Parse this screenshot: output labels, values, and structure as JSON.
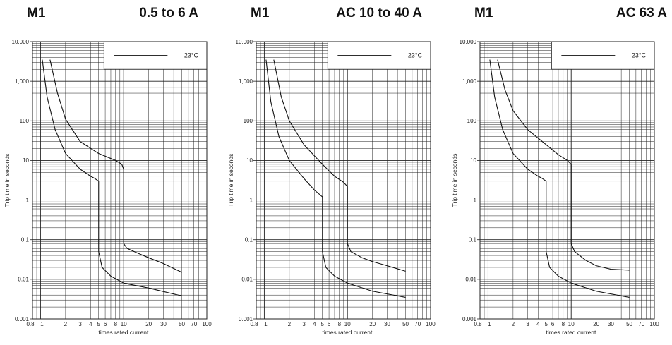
{
  "chart_data": [
    {
      "type": "line",
      "device": "M1",
      "title": "0.5 to 6 A",
      "xlabel": "… times rated current",
      "ylabel": "Trip time in seconds",
      "x_scale": "log",
      "y_scale": "log",
      "xlim": [
        0.8,
        100
      ],
      "ylim": [
        0.001,
        10000
      ],
      "grid": true,
      "x_ticks": [
        "0.8",
        "1",
        "2",
        "3",
        "4",
        "5",
        "6",
        "8",
        "10",
        "20",
        "30",
        "50",
        "70",
        "100"
      ],
      "y_ticks": [
        "0.001",
        "0.01",
        "0.1",
        "1",
        "10",
        "100",
        "1,000",
        "10,000"
      ],
      "legend": {
        "label": "23°C",
        "position": "top-right"
      },
      "series": [
        {
          "x": [
            1.05,
            1.2,
            1.5,
            2,
            3,
            4,
            4.5,
            5,
            5,
            5.5,
            7,
            10,
            20,
            50
          ],
          "y": [
            3500,
            400,
            60,
            15,
            6,
            4,
            3.5,
            3,
            0.05,
            0.02,
            0.012,
            0.008,
            0.006,
            0.0038
          ]
        },
        {
          "x": [
            1.3,
            1.6,
            2,
            3,
            5,
            8,
            9.5,
            10,
            10,
            11,
            15,
            20,
            30,
            50
          ],
          "y": [
            3500,
            500,
            110,
            30,
            15,
            10,
            8,
            6,
            0.08,
            0.06,
            0.045,
            0.035,
            0.025,
            0.015
          ]
        }
      ]
    },
    {
      "type": "line",
      "device": "M1",
      "title": "AC 10 to 40 A",
      "xlabel": "… times rated current",
      "ylabel": "Trip time in seconds",
      "x_scale": "log",
      "y_scale": "log",
      "xlim": [
        0.8,
        100
      ],
      "ylim": [
        0.001,
        10000
      ],
      "grid": true,
      "x_ticks": [
        "0.8",
        "1",
        "2",
        "3",
        "4",
        "5",
        "6",
        "8",
        "10",
        "20",
        "30",
        "50",
        "70",
        "100"
      ],
      "y_ticks": [
        "0.001",
        "0.01",
        "0.1",
        "1",
        "10",
        "100",
        "1,000",
        "10,000"
      ],
      "legend": {
        "label": "23°C",
        "position": "top-right"
      },
      "series": [
        {
          "x": [
            1.05,
            1.2,
            1.5,
            2,
            3,
            4,
            4.6,
            5,
            5,
            5.5,
            7,
            10,
            20,
            50
          ],
          "y": [
            3500,
            300,
            40,
            10,
            3.5,
            1.8,
            1.4,
            1.2,
            0.05,
            0.02,
            0.012,
            0.008,
            0.005,
            0.0035
          ]
        },
        {
          "x": [
            1.3,
            1.6,
            2,
            3,
            5,
            7,
            9,
            10,
            10,
            11,
            15,
            20,
            30,
            50
          ],
          "y": [
            3500,
            400,
            100,
            25,
            8,
            4,
            2.8,
            2.2,
            0.08,
            0.05,
            0.035,
            0.028,
            0.022,
            0.016
          ]
        }
      ]
    },
    {
      "type": "line",
      "device": "M1",
      "title": "AC 63 A",
      "xlabel": "… times rated current",
      "ylabel": "Trip time in seconds",
      "x_scale": "log",
      "y_scale": "log",
      "xlim": [
        0.8,
        100
      ],
      "ylim": [
        0.001,
        10000
      ],
      "grid": true,
      "x_ticks": [
        "0.8",
        "1",
        "2",
        "3",
        "4",
        "5",
        "6",
        "8",
        "10",
        "20",
        "30",
        "50",
        "70",
        "100"
      ],
      "y_ticks": [
        "0.001",
        "0.01",
        "0.1",
        "1",
        "10",
        "100",
        "1,000",
        "10,000"
      ],
      "legend": {
        "label": "23°C",
        "position": "top-right"
      },
      "series": [
        {
          "x": [
            1.05,
            1.2,
            1.5,
            2,
            3,
            4,
            4.5,
            5,
            5,
            5.5,
            7,
            10,
            20,
            50
          ],
          "y": [
            3500,
            400,
            60,
            15,
            6,
            4,
            3.5,
            3,
            0.05,
            0.02,
            0.012,
            0.008,
            0.005,
            0.0035
          ]
        },
        {
          "x": [
            1.3,
            1.6,
            2,
            3,
            5,
            7,
            9,
            10,
            10,
            11,
            15,
            20,
            30,
            50
          ],
          "y": [
            3500,
            600,
            180,
            60,
            25,
            14,
            10,
            8,
            0.08,
            0.05,
            0.03,
            0.022,
            0.018,
            0.017
          ]
        }
      ]
    }
  ]
}
